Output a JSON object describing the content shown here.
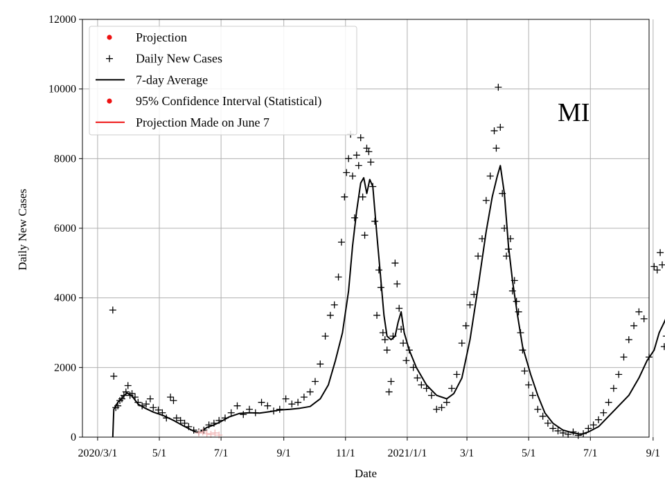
{
  "chart_data": {
    "type": "line",
    "state_label": "MI",
    "xlabel": "Date",
    "ylabel": "Daily New Cases",
    "ylim": [
      0,
      12000
    ],
    "yticks": [
      0,
      2000,
      4000,
      6000,
      8000,
      10000,
      12000
    ],
    "xlim_days": [
      -15,
      545
    ],
    "xticks": [
      {
        "day": 0,
        "label": "2020/3/1"
      },
      {
        "day": 61,
        "label": "5/1"
      },
      {
        "day": 122,
        "label": "7/1"
      },
      {
        "day": 184,
        "label": "9/1"
      },
      {
        "day": 245,
        "label": "11/1"
      },
      {
        "day": 306,
        "label": "2021/1/1"
      },
      {
        "day": 365,
        "label": "3/1"
      },
      {
        "day": 426,
        "label": "5/1"
      },
      {
        "day": 487,
        "label": "7/1"
      },
      {
        "day": 549,
        "label": "9/1"
      }
    ],
    "grid": true,
    "legend": {
      "position": "top-left",
      "entries": [
        {
          "label": "Projection",
          "marker": "dot",
          "color": "#ee1111"
        },
        {
          "label": "Daily New Cases",
          "marker": "plus",
          "color": "#000000"
        },
        {
          "label": "7-day Average",
          "marker": "line",
          "color": "#000000"
        },
        {
          "label": "95% Confidence Interval (Statistical)",
          "marker": "dot",
          "color": "#ee1111"
        },
        {
          "label": "Projection Made on June 7",
          "marker": "line",
          "color": "#ee1111"
        }
      ]
    },
    "series": [
      {
        "name": "7-day Average",
        "color": "#000000",
        "points": [
          [
            15,
            0
          ],
          [
            16,
            800
          ],
          [
            20,
            1000
          ],
          [
            25,
            1150
          ],
          [
            29,
            1270
          ],
          [
            34,
            1180
          ],
          [
            40,
            950
          ],
          [
            47,
            830
          ],
          [
            55,
            720
          ],
          [
            65,
            620
          ],
          [
            75,
            480
          ],
          [
            85,
            320
          ],
          [
            95,
            170
          ],
          [
            100,
            120
          ],
          [
            108,
            280
          ],
          [
            115,
            350
          ],
          [
            122,
            450
          ],
          [
            130,
            580
          ],
          [
            140,
            680
          ],
          [
            150,
            700
          ],
          [
            160,
            690
          ],
          [
            170,
            730
          ],
          [
            180,
            780
          ],
          [
            190,
            800
          ],
          [
            200,
            830
          ],
          [
            210,
            880
          ],
          [
            220,
            1100
          ],
          [
            228,
            1500
          ],
          [
            235,
            2200
          ],
          [
            242,
            3000
          ],
          [
            248,
            4200
          ],
          [
            252,
            5500
          ],
          [
            256,
            6500
          ],
          [
            260,
            7300
          ],
          [
            263,
            7450
          ],
          [
            266,
            7000
          ],
          [
            269,
            7400
          ],
          [
            272,
            7200
          ],
          [
            276,
            5800
          ],
          [
            280,
            4500
          ],
          [
            283,
            3500
          ],
          [
            286,
            2900
          ],
          [
            290,
            2800
          ],
          [
            294,
            2900
          ],
          [
            297,
            3300
          ],
          [
            300,
            3600
          ],
          [
            303,
            3000
          ],
          [
            308,
            2500
          ],
          [
            315,
            2000
          ],
          [
            325,
            1500
          ],
          [
            335,
            1200
          ],
          [
            345,
            1100
          ],
          [
            352,
            1250
          ],
          [
            360,
            1700
          ],
          [
            368,
            2800
          ],
          [
            376,
            4300
          ],
          [
            384,
            5900
          ],
          [
            390,
            6900
          ],
          [
            395,
            7500
          ],
          [
            398,
            7800
          ],
          [
            402,
            7000
          ],
          [
            406,
            5500
          ],
          [
            410,
            4500
          ],
          [
            415,
            3500
          ],
          [
            420,
            2600
          ],
          [
            428,
            1800
          ],
          [
            435,
            1200
          ],
          [
            442,
            700
          ],
          [
            450,
            400
          ],
          [
            460,
            200
          ],
          [
            470,
            120
          ],
          [
            478,
            80
          ],
          [
            485,
            150
          ],
          [
            495,
            300
          ],
          [
            505,
            600
          ],
          [
            515,
            900
          ],
          [
            525,
            1200
          ],
          [
            535,
            1700
          ],
          [
            543,
            2200
          ],
          [
            550,
            2500
          ],
          [
            555,
            3000
          ],
          [
            560,
            3300
          ],
          [
            563,
            3500
          ]
        ]
      },
      {
        "name": "Projection Made on June 7",
        "color": "#ee1111",
        "points": [
          [
            566,
            3500
          ],
          [
            572,
            4000
          ],
          [
            578,
            4500
          ],
          [
            584,
            4850
          ],
          [
            588,
            4930
          ],
          [
            592,
            4700
          ],
          [
            598,
            4400
          ],
          [
            605,
            4200
          ],
          [
            612,
            4100
          ],
          [
            620,
            4080
          ],
          [
            626,
            4080
          ]
        ]
      },
      {
        "name": "Projection Made on June 7 (lower)",
        "color": "#ee1111",
        "points": [
          [
            566,
            3500
          ],
          [
            572,
            3000
          ],
          [
            578,
            2500
          ],
          [
            584,
            2000
          ],
          [
            590,
            1500
          ],
          [
            596,
            1000
          ],
          [
            602,
            650
          ],
          [
            608,
            450
          ],
          [
            614,
            320
          ],
          [
            620,
            220
          ],
          [
            626,
            180
          ]
        ]
      },
      {
        "name": "Projection",
        "color": "#ee1111",
        "marker": "dot",
        "points": [
          [
            566,
            3450
          ],
          [
            569,
            3400
          ],
          [
            572,
            3380
          ],
          [
            575,
            3300
          ],
          [
            578,
            3150
          ],
          [
            581,
            2950
          ],
          [
            584,
            2700
          ],
          [
            587,
            2450
          ],
          [
            590,
            2200
          ],
          [
            593,
            1950
          ],
          [
            596,
            1700
          ],
          [
            599,
            1500
          ],
          [
            602,
            1350
          ],
          [
            605,
            1200
          ],
          [
            608,
            1100
          ],
          [
            611,
            1020
          ],
          [
            614,
            980
          ],
          [
            617,
            940
          ],
          [
            620,
            920
          ],
          [
            623,
            900
          ],
          [
            626,
            880
          ]
        ]
      },
      {
        "name": "Daily New Cases",
        "color": "#000000",
        "marker": "plus",
        "points": [
          [
            15,
            3650
          ],
          [
            16,
            1750
          ],
          [
            18,
            850
          ],
          [
            20,
            900
          ],
          [
            22,
            1050
          ],
          [
            24,
            1100
          ],
          [
            26,
            1200
          ],
          [
            28,
            1300
          ],
          [
            30,
            1480
          ],
          [
            32,
            1200
          ],
          [
            34,
            1250
          ],
          [
            37,
            1150
          ],
          [
            40,
            1000
          ],
          [
            44,
            900
          ],
          [
            48,
            950
          ],
          [
            52,
            1100
          ],
          [
            55,
            850
          ],
          [
            60,
            780
          ],
          [
            64,
            700
          ],
          [
            68,
            550
          ],
          [
            72,
            1150
          ],
          [
            75,
            1050
          ],
          [
            78,
            550
          ],
          [
            82,
            480
          ],
          [
            86,
            400
          ],
          [
            90,
            300
          ],
          [
            95,
            200
          ],
          [
            100,
            150
          ],
          [
            105,
            200
          ],
          [
            110,
            350
          ],
          [
            115,
            400
          ],
          [
            120,
            480
          ],
          [
            126,
            550
          ],
          [
            132,
            700
          ],
          [
            138,
            900
          ],
          [
            144,
            650
          ],
          [
            150,
            800
          ],
          [
            156,
            700
          ],
          [
            162,
            1000
          ],
          [
            168,
            900
          ],
          [
            174,
            750
          ],
          [
            180,
            800
          ],
          [
            186,
            1100
          ],
          [
            192,
            950
          ],
          [
            198,
            1000
          ],
          [
            204,
            1150
          ],
          [
            210,
            1300
          ],
          [
            215,
            1600
          ],
          [
            220,
            2100
          ],
          [
            225,
            2900
          ],
          [
            230,
            3500
          ],
          [
            234,
            3800
          ],
          [
            238,
            4600
          ],
          [
            241,
            5600
          ],
          [
            244,
            6900
          ],
          [
            246,
            7600
          ],
          [
            248,
            8000
          ],
          [
            250,
            8700
          ],
          [
            252,
            7500
          ],
          [
            254,
            6300
          ],
          [
            256,
            8100
          ],
          [
            258,
            7800
          ],
          [
            260,
            8600
          ],
          [
            262,
            6900
          ],
          [
            264,
            5800
          ],
          [
            266,
            8300
          ],
          [
            268,
            8200
          ],
          [
            270,
            7900
          ],
          [
            272,
            7200
          ],
          [
            274,
            6200
          ],
          [
            276,
            3500
          ],
          [
            278,
            4800
          ],
          [
            280,
            4300
          ],
          [
            282,
            3000
          ],
          [
            284,
            2800
          ],
          [
            286,
            2500
          ],
          [
            288,
            1300
          ],
          [
            290,
            1600
          ],
          [
            292,
            2900
          ],
          [
            294,
            5000
          ],
          [
            296,
            4400
          ],
          [
            298,
            3700
          ],
          [
            300,
            3100
          ],
          [
            302,
            2700
          ],
          [
            305,
            2200
          ],
          [
            308,
            2500
          ],
          [
            312,
            2000
          ],
          [
            316,
            1700
          ],
          [
            320,
            1500
          ],
          [
            325,
            1400
          ],
          [
            330,
            1200
          ],
          [
            335,
            800
          ],
          [
            340,
            850
          ],
          [
            345,
            1000
          ],
          [
            350,
            1400
          ],
          [
            355,
            1800
          ],
          [
            360,
            2700
          ],
          [
            364,
            3200
          ],
          [
            368,
            3800
          ],
          [
            372,
            4100
          ],
          [
            376,
            5200
          ],
          [
            380,
            5700
          ],
          [
            384,
            6800
          ],
          [
            388,
            7500
          ],
          [
            392,
            8800
          ],
          [
            394,
            8300
          ],
          [
            396,
            10050
          ],
          [
            398,
            8900
          ],
          [
            400,
            7000
          ],
          [
            402,
            6000
          ],
          [
            404,
            5200
          ],
          [
            406,
            5400
          ],
          [
            408,
            5700
          ],
          [
            410,
            4200
          ],
          [
            412,
            4500
          ],
          [
            414,
            3900
          ],
          [
            416,
            3600
          ],
          [
            418,
            3000
          ],
          [
            420,
            2500
          ],
          [
            422,
            1900
          ],
          [
            426,
            1500
          ],
          [
            430,
            1200
          ],
          [
            435,
            800
          ],
          [
            440,
            600
          ],
          [
            445,
            400
          ],
          [
            450,
            250
          ],
          [
            455,
            180
          ],
          [
            460,
            120
          ],
          [
            465,
            80
          ],
          [
            470,
            150
          ],
          [
            475,
            50
          ],
          [
            480,
            100
          ],
          [
            485,
            250
          ],
          [
            490,
            350
          ],
          [
            495,
            500
          ],
          [
            500,
            700
          ],
          [
            505,
            1000
          ],
          [
            510,
            1400
          ],
          [
            515,
            1800
          ],
          [
            520,
            2300
          ],
          [
            525,
            2800
          ],
          [
            530,
            3200
          ],
          [
            535,
            3600
          ],
          [
            540,
            3400
          ],
          [
            545,
            2300
          ],
          [
            550,
            4900
          ],
          [
            553,
            4800
          ],
          [
            556,
            5300
          ],
          [
            558,
            4950
          ],
          [
            560,
            2600
          ],
          [
            562,
            2900
          ]
        ]
      },
      {
        "name": "Projection Made on June 7 (faded early)",
        "color": "#f2b6b6",
        "marker": "plus",
        "points": [
          [
            100,
            120
          ],
          [
            104,
            150
          ],
          [
            108,
            100
          ],
          [
            112,
            80
          ],
          [
            116,
            120
          ],
          [
            120,
            60
          ]
        ]
      }
    ]
  }
}
